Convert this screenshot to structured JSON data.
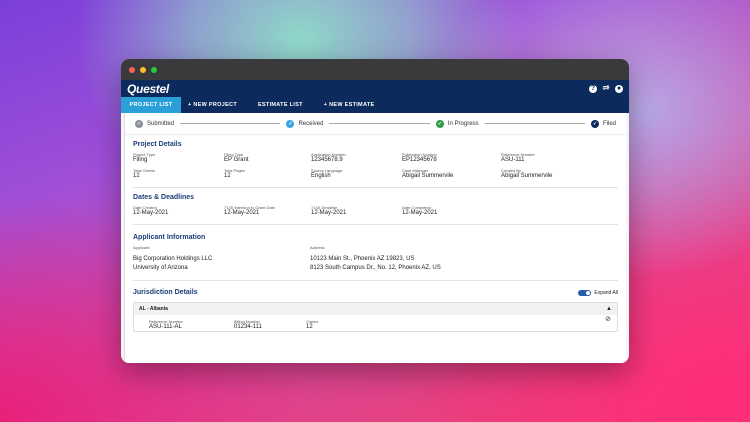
{
  "app": {
    "logo": "Questel"
  },
  "nav": {
    "items": [
      {
        "label": "PROJECT LIST",
        "active": true
      },
      {
        "label": "+ NEW PROJECT",
        "active": false
      },
      {
        "label": "ESTIMATE LIST",
        "active": false
      },
      {
        "label": "+ NEW ESTIMATE",
        "active": false
      }
    ]
  },
  "steps": [
    {
      "label": "Submitted",
      "color": "#8a8f99"
    },
    {
      "label": "Received",
      "color": "#35a7e0"
    },
    {
      "label": "In Progress",
      "color": "#2e9b4a"
    },
    {
      "label": "Filed",
      "color": "#0c2a5b"
    }
  ],
  "project_details": {
    "title": "Project Details",
    "fields": [
      {
        "label": "Project Type",
        "value": "Filing"
      },
      {
        "label": "Filing Type",
        "value": "EP Grant"
      },
      {
        "label": "Application Number",
        "value": "12345678.9"
      },
      {
        "label": "Publication Number",
        "value": "EP12345678"
      },
      {
        "label": "Reference Number",
        "value": "ASU-111"
      },
      {
        "label": "Total Claims",
        "value": "12"
      },
      {
        "label": "Total Pages",
        "value": "12"
      },
      {
        "label": "Source Language",
        "value": "English"
      },
      {
        "label": "Case Manager",
        "value": "Abigail Summervile"
      },
      {
        "label": "Created By",
        "value": "Abigail Summervile"
      }
    ]
  },
  "dates": {
    "title": "Dates & Deadlines",
    "fields": [
      {
        "label": "Date Created",
        "value": "12-May-2021"
      },
      {
        "label": "71(3) Intention to Grant Date",
        "value": "12-May-2021"
      },
      {
        "label": "71(3) Deadline",
        "value": "12-May-2021"
      },
      {
        "label": "Date Completed",
        "value": "12-May-2021"
      }
    ]
  },
  "applicant": {
    "title": "Applicant Information",
    "applicant_label": "Applicant",
    "address_label": "Address",
    "rows": [
      {
        "name": "Big Corporation Holdings LLC",
        "address": "10123 Main St., Phoenix AZ 19823, US"
      },
      {
        "name": "University of Arizona",
        "address": "8123 South Campus Dr., No. 12, Phoenix AZ, US"
      }
    ]
  },
  "jurisdiction": {
    "title": "Jurisdiction Details",
    "expand_label": "Expand All",
    "card": {
      "header": "AL - Albania",
      "fields": [
        {
          "label": "Reference Number",
          "value": "ASU-111-AL"
        },
        {
          "label": "Billing Number",
          "value": "01234-111"
        },
        {
          "label": "Claims",
          "value": "12"
        }
      ]
    }
  }
}
